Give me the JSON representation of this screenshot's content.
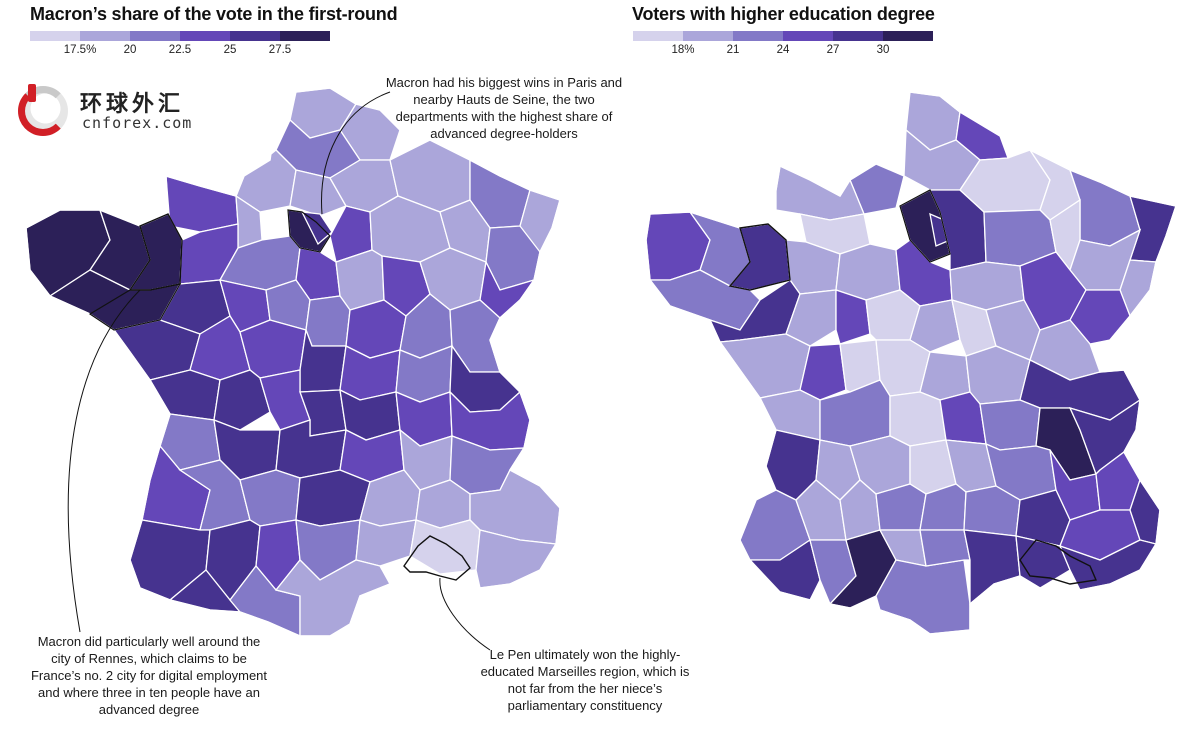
{
  "left": {
    "title": "Macron’s share of the vote in the first-round",
    "legend": {
      "colors": [
        "#d5d2ec",
        "#aba6da",
        "#8379c7",
        "#6447b8",
        "#46338f",
        "#2c2058"
      ],
      "ticks": [
        "17.5%",
        "20",
        "22.5",
        "25",
        "27.5"
      ]
    },
    "annotations": {
      "paris": "Macron had his biggest wins in Paris and nearby Hauts de Seine, the two departments with the highest share of advanced degree-holders",
      "rennes": "Macron did particularly well around the city of Rennes, which claims to be France’s no. 2 city for digital employment and where three in ten people have an advanced degree",
      "marseille": "Le Pen ultimately won the highly-educated Marseilles region, which is not far from the her niece’s parliamentary constituency"
    }
  },
  "right": {
    "title": "Voters with higher education degree",
    "legend": {
      "colors": [
        "#d5d2ec",
        "#aba6da",
        "#8379c7",
        "#6447b8",
        "#46338f",
        "#2c2058"
      ],
      "ticks": [
        "18%",
        "21",
        "24",
        "27",
        "30"
      ]
    }
  },
  "watermark": {
    "chinese": "环球外汇",
    "latin": "cnforex.com"
  }
}
